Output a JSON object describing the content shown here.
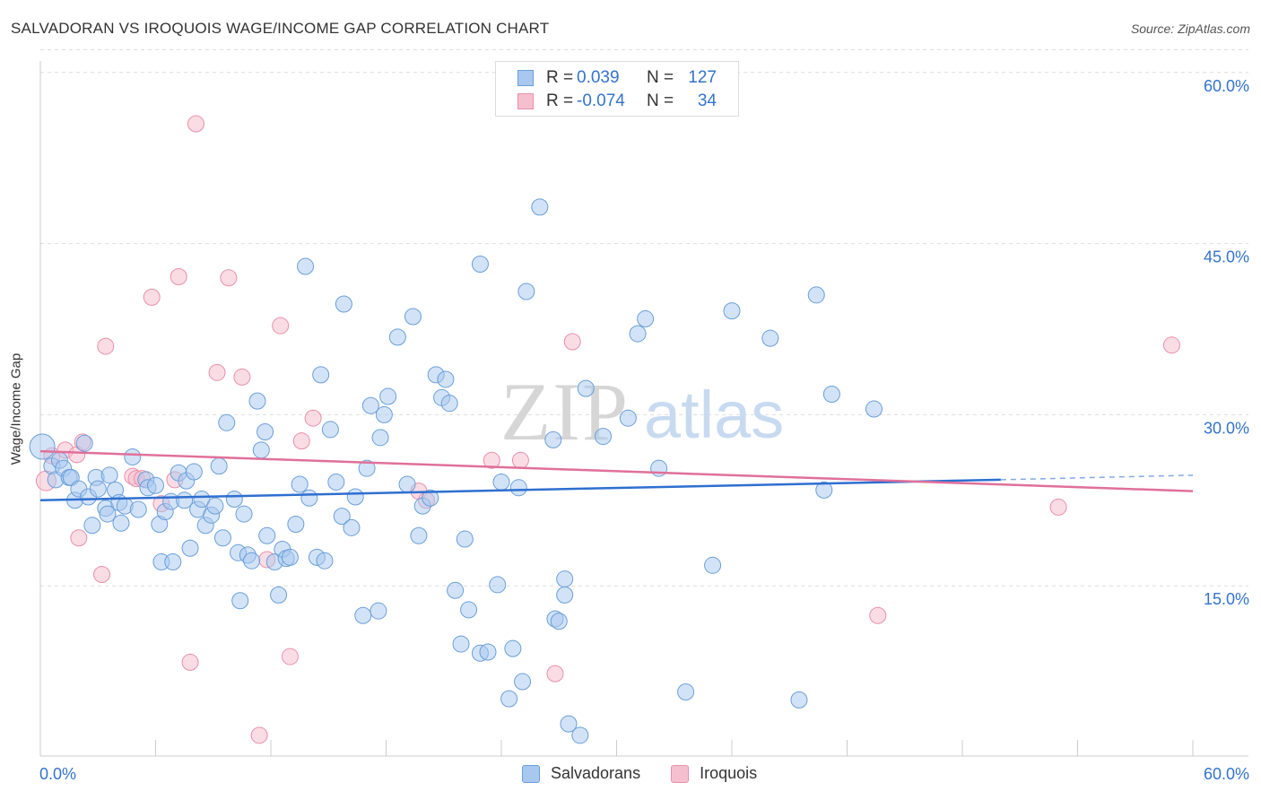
{
  "title": "SALVADORAN VS IROQUOIS WAGE/INCOME GAP CORRELATION CHART",
  "source": "Source: ZipAtlas.com",
  "watermark": {
    "zip": "ZIP",
    "atlas": "atlas"
  },
  "legend_top": {
    "rows": [
      {
        "r_label": "R =",
        "r_value": "0.039",
        "n_label": "N =",
        "n_value": "127"
      },
      {
        "r_label": "R =",
        "r_value": "-0.074",
        "n_label": "N =",
        "n_value": "34"
      }
    ]
  },
  "colors": {
    "salvadorans_fill": "#a8c8f0",
    "salvadorans_stroke": "#6a9fd8",
    "salvadorans_line": "#2e6fd0",
    "iroquois_fill": "#f6bfcf",
    "iroquois_stroke": "#e890aa",
    "iroquois_line": "#e0709a",
    "axis_label": "#3373cc",
    "grid": "#dddddd"
  },
  "chart_data": {
    "type": "scatter",
    "title": "SALVADORAN VS IROQUOIS WAGE/INCOME GAP CORRELATION CHART",
    "xlabel": "",
    "ylabel": "Wage/Income Gap",
    "xlim": [
      0,
      60
    ],
    "ylim": [
      0,
      62
    ],
    "x_tick_labels": [
      "0.0%",
      "60.0%"
    ],
    "y_ticks": [
      15,
      30,
      45,
      60
    ],
    "y_tick_labels": [
      "15.0%",
      "30.0%",
      "45.0%",
      "60.0%"
    ],
    "grid": true,
    "legend_position": "top-center",
    "series": [
      {
        "name": "Salvadorans",
        "r": 0.039,
        "n": 127,
        "trend": {
          "x": [
            0,
            50
          ],
          "y": [
            22.5,
            24.3
          ],
          "dashed_to": [
            60,
            24.7
          ]
        },
        "points": [
          [
            0.1,
            27.2,
            14
          ],
          [
            0.6,
            25.5,
            9
          ],
          [
            0.8,
            24.3,
            9
          ],
          [
            1.0,
            26.0,
            9
          ],
          [
            1.2,
            25.3,
            9
          ],
          [
            1.5,
            24.5,
            9
          ],
          [
            1.6,
            24.5,
            9
          ],
          [
            1.8,
            22.5,
            9
          ],
          [
            2.0,
            23.5,
            9
          ],
          [
            2.3,
            27.5,
            9
          ],
          [
            2.5,
            22.8,
            9
          ],
          [
            2.7,
            20.3,
            9
          ],
          [
            2.9,
            24.5,
            9
          ],
          [
            3.0,
            23.5,
            9
          ],
          [
            3.4,
            21.8,
            9
          ],
          [
            3.5,
            21.3,
            9
          ],
          [
            3.6,
            24.7,
            9
          ],
          [
            3.9,
            23.4,
            9
          ],
          [
            4.1,
            22.3,
            9
          ],
          [
            4.2,
            20.5,
            9
          ],
          [
            4.4,
            22.0,
            9
          ],
          [
            4.8,
            26.3,
            9
          ],
          [
            5.1,
            21.7,
            9
          ],
          [
            5.5,
            24.3,
            9
          ],
          [
            5.6,
            23.6,
            9
          ],
          [
            6.0,
            23.8,
            9
          ],
          [
            6.2,
            20.4,
            9
          ],
          [
            6.3,
            17.1,
            9
          ],
          [
            6.5,
            21.5,
            9
          ],
          [
            6.8,
            22.4,
            9
          ],
          [
            6.9,
            17.1,
            9
          ],
          [
            7.2,
            24.9,
            9
          ],
          [
            7.5,
            22.5,
            9
          ],
          [
            7.6,
            24.2,
            9
          ],
          [
            7.8,
            18.3,
            9
          ],
          [
            8.0,
            25.0,
            9
          ],
          [
            8.2,
            21.7,
            9
          ],
          [
            8.4,
            22.6,
            9
          ],
          [
            8.6,
            20.3,
            9
          ],
          [
            8.9,
            21.2,
            9
          ],
          [
            9.1,
            22.0,
            9
          ],
          [
            9.3,
            25.5,
            9
          ],
          [
            9.5,
            19.2,
            9
          ],
          [
            9.7,
            29.3,
            9
          ],
          [
            10.1,
            22.6,
            9
          ],
          [
            10.3,
            17.9,
            9
          ],
          [
            10.4,
            13.7,
            9
          ],
          [
            10.6,
            21.3,
            9
          ],
          [
            10.8,
            17.7,
            9
          ],
          [
            11.0,
            17.2,
            9
          ],
          [
            11.3,
            31.2,
            9
          ],
          [
            11.5,
            26.9,
            9
          ],
          [
            11.7,
            28.5,
            9
          ],
          [
            11.8,
            19.4,
            9
          ],
          [
            12.2,
            17.1,
            9
          ],
          [
            12.4,
            14.2,
            9
          ],
          [
            12.6,
            18.2,
            9
          ],
          [
            12.8,
            17.4,
            9
          ],
          [
            13.0,
            17.5,
            9
          ],
          [
            13.3,
            20.4,
            9
          ],
          [
            13.5,
            23.9,
            9
          ],
          [
            13.8,
            43.0,
            9
          ],
          [
            14.0,
            22.7,
            9
          ],
          [
            14.4,
            17.5,
            9
          ],
          [
            14.6,
            33.5,
            9
          ],
          [
            14.8,
            17.2,
            9
          ],
          [
            15.1,
            28.7,
            9
          ],
          [
            15.4,
            24.1,
            9
          ],
          [
            15.7,
            21.1,
            9
          ],
          [
            15.8,
            39.7,
            9
          ],
          [
            16.2,
            20.1,
            9
          ],
          [
            16.4,
            22.8,
            9
          ],
          [
            16.8,
            12.4,
            9
          ],
          [
            17.0,
            25.3,
            9
          ],
          [
            17.2,
            30.8,
            9
          ],
          [
            17.6,
            12.8,
            9
          ],
          [
            17.7,
            28.0,
            9
          ],
          [
            17.9,
            30.0,
            9
          ],
          [
            18.1,
            31.6,
            9
          ],
          [
            18.6,
            36.8,
            9
          ],
          [
            19.1,
            23.9,
            9
          ],
          [
            19.4,
            38.6,
            9
          ],
          [
            19.7,
            19.4,
            9
          ],
          [
            19.9,
            22.0,
            9
          ],
          [
            20.3,
            22.7,
            9
          ],
          [
            20.6,
            33.5,
            9
          ],
          [
            20.9,
            31.5,
            9
          ],
          [
            21.1,
            33.1,
            9
          ],
          [
            21.3,
            31.0,
            9
          ],
          [
            21.6,
            14.6,
            9
          ],
          [
            21.9,
            9.9,
            9
          ],
          [
            22.1,
            19.1,
            9
          ],
          [
            22.3,
            12.9,
            9
          ],
          [
            22.9,
            43.2,
            9
          ],
          [
            22.9,
            9.1,
            9
          ],
          [
            23.3,
            9.2,
            9
          ],
          [
            23.8,
            15.1,
            9
          ],
          [
            24.0,
            24.1,
            9
          ],
          [
            24.4,
            5.1,
            9
          ],
          [
            24.6,
            9.5,
            9
          ],
          [
            24.9,
            23.6,
            9
          ],
          [
            25.1,
            6.6,
            9
          ],
          [
            25.3,
            40.8,
            9
          ],
          [
            26.0,
            48.2,
            9
          ],
          [
            26.7,
            27.8,
            9
          ],
          [
            26.8,
            12.1,
            9
          ],
          [
            27.0,
            11.9,
            9
          ],
          [
            27.3,
            15.6,
            9
          ],
          [
            27.3,
            14.2,
            9
          ],
          [
            27.5,
            2.9,
            9
          ],
          [
            28.1,
            1.9,
            9
          ],
          [
            28.4,
            32.3,
            9
          ],
          [
            29.3,
            28.1,
            9
          ],
          [
            30.6,
            29.7,
            9
          ],
          [
            31.1,
            37.1,
            9
          ],
          [
            31.5,
            38.4,
            9
          ],
          [
            32.2,
            25.3,
            9
          ],
          [
            33.6,
            5.7,
            9
          ],
          [
            35.0,
            16.8,
            9
          ],
          [
            36.0,
            39.1,
            9
          ],
          [
            38.0,
            36.7,
            9
          ],
          [
            39.5,
            5.0,
            9
          ],
          [
            40.4,
            40.5,
            9
          ],
          [
            40.8,
            23.4,
            9
          ],
          [
            41.2,
            31.8,
            9
          ],
          [
            43.4,
            30.5,
            9
          ]
        ]
      },
      {
        "name": "Iroquois",
        "r": -0.074,
        "n": 34,
        "trend": {
          "x": [
            0,
            60
          ],
          "y": [
            26.8,
            23.3
          ]
        },
        "points": [
          [
            0.3,
            24.2,
            11
          ],
          [
            0.6,
            26.4,
            9
          ],
          [
            1.3,
            26.9,
            9
          ],
          [
            1.9,
            26.5,
            9
          ],
          [
            2.0,
            19.2,
            9
          ],
          [
            2.2,
            27.6,
            9
          ],
          [
            3.2,
            16.0,
            9
          ],
          [
            3.4,
            36.0,
            9
          ],
          [
            4.8,
            24.6,
            9
          ],
          [
            5.0,
            24.4,
            9
          ],
          [
            5.3,
            24.4,
            9
          ],
          [
            5.8,
            40.3,
            9
          ],
          [
            6.3,
            22.2,
            9
          ],
          [
            7.0,
            24.3,
            9
          ],
          [
            7.2,
            42.1,
            9
          ],
          [
            7.8,
            8.3,
            9
          ],
          [
            8.1,
            55.5,
            9
          ],
          [
            9.2,
            33.7,
            9
          ],
          [
            9.8,
            42.0,
            9
          ],
          [
            10.5,
            33.3,
            9
          ],
          [
            11.4,
            1.9,
            9
          ],
          [
            11.8,
            17.3,
            9
          ],
          [
            12.5,
            37.8,
            9
          ],
          [
            13.0,
            8.8,
            9
          ],
          [
            13.6,
            27.7,
            9
          ],
          [
            14.2,
            29.7,
            9
          ],
          [
            19.7,
            23.3,
            9
          ],
          [
            20.1,
            22.5,
            9
          ],
          [
            23.5,
            26.0,
            9
          ],
          [
            25.0,
            26.0,
            9
          ],
          [
            26.8,
            7.3,
            9
          ],
          [
            27.7,
            36.4,
            9
          ],
          [
            43.6,
            12.4,
            9
          ],
          [
            53.0,
            21.9,
            9
          ],
          [
            58.9,
            36.1,
            9
          ]
        ]
      }
    ]
  },
  "legend_bottom": {
    "items": [
      "Salvadorans",
      "Iroquois"
    ]
  }
}
